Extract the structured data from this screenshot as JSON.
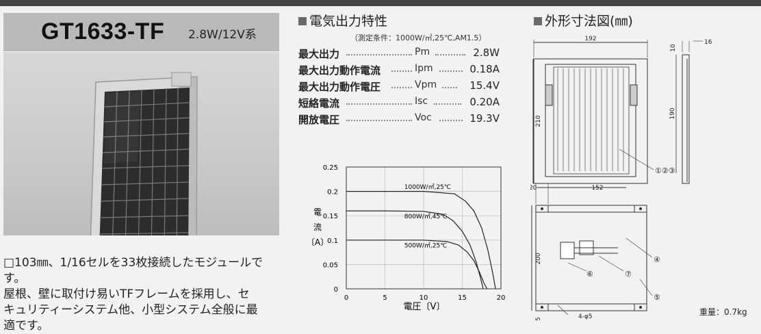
{
  "header": {
    "model": "GT1633-TF",
    "spec": "2.8W/12V系"
  },
  "description": {
    "lines": [
      "□103㎜、1/16セルを33枚接続したモジュールです。",
      "屋根、壁に取付け易いTFフレームを採用し、セ",
      "キュリティーシステム他、小型システム全般に最",
      "適です。"
    ]
  },
  "characteristics": {
    "heading": "電気出力特性",
    "condition": "（測定条件：1000W/㎡,25℃,AM1.5）",
    "rows": [
      {
        "label": "最大出力",
        "symbol": "Pm",
        "value": "2.8W"
      },
      {
        "label": "最大出力動作電流",
        "symbol": "Ipm",
        "value": "0.18A"
      },
      {
        "label": "最大出力動作電圧",
        "symbol": "Vpm",
        "value": "15.4V"
      },
      {
        "label": "短絡電流",
        "symbol": "Isc",
        "value": "0.20A"
      },
      {
        "label": "開放電圧",
        "symbol": "Voc",
        "value": "19.3V"
      }
    ]
  },
  "chart_data": {
    "type": "line",
    "xlabel": "電圧〔V〕",
    "ylabel": "電流〔A〕",
    "xlim": [
      0,
      20
    ],
    "ylim": [
      0,
      0.25
    ],
    "xticks": [
      "0",
      "5",
      "10",
      "15",
      "20"
    ],
    "yticks": [
      "0",
      "0.05",
      "0.1",
      "0.15",
      "0.2",
      "0.25"
    ],
    "grid": true,
    "series": [
      {
        "name": "1000W/㎡,25℃",
        "x": [
          0,
          5,
          10,
          14,
          15.4,
          16.5,
          17.5,
          18.3,
          18.9,
          19.3
        ],
        "y": [
          0.2,
          0.2,
          0.2,
          0.195,
          0.18,
          0.16,
          0.125,
          0.08,
          0.035,
          0
        ]
      },
      {
        "name": "800W/㎡,45℃",
        "x": [
          0,
          5,
          10,
          12.5,
          13.8,
          15,
          16,
          16.8,
          17.4,
          17.7
        ],
        "y": [
          0.16,
          0.16,
          0.159,
          0.153,
          0.14,
          0.118,
          0.09,
          0.055,
          0.02,
          0
        ]
      },
      {
        "name": "500W/㎡,25℃",
        "x": [
          0,
          5,
          10,
          13,
          14.5,
          15.6,
          16.5,
          17.2,
          17.8,
          18.2
        ],
        "y": [
          0.1,
          0.1,
          0.1,
          0.097,
          0.09,
          0.076,
          0.058,
          0.035,
          0.012,
          0
        ]
      }
    ]
  },
  "dimensions": {
    "heading": "外形寸法図(㎜)",
    "front_width": "192",
    "front_height": "210",
    "side_height": "190",
    "side_top": "10",
    "side_depth": "16",
    "back_offset": "20",
    "back_width": "152",
    "back_height": "200",
    "back_bottom": "5",
    "holes": "4-φ5",
    "callout_cells": "①②③",
    "callout_4": "④",
    "callout_5": "⑤",
    "callout_6": "⑥",
    "callout_7": "⑦"
  },
  "weight": "重量：0.7kg"
}
